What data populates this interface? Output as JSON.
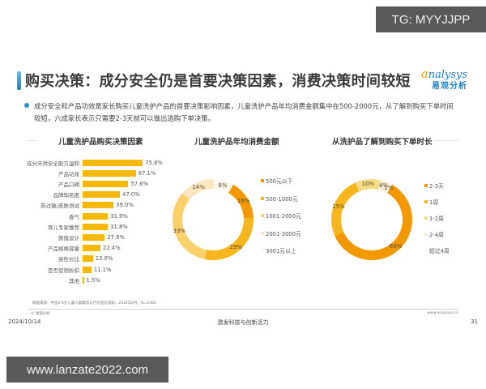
{
  "watermarks": {
    "top_right": "TG: MYYJJPP",
    "bottom_left": "www.lanzate2022.com"
  },
  "header": {
    "title": "购买决策：成分安全仍是首要决策因素，消费决策时间较短",
    "logo_en_first": "a",
    "logo_en_rest": "nalysys",
    "logo_cn": "易观分析"
  },
  "summary": {
    "text": "成分安全和产品功效是家长购买儿童洗护产品的首要决策影响因素，儿童洗护产品年均消费金额集中在500-2000元，从了解到购买下单时间较短，六成家长表示只需要2-3天就可以做出选购下单决策。"
  },
  "chart_data": [
    {
      "type": "bar",
      "orientation": "horizontal",
      "title": "儿童洗护品购买决策因素",
      "categories": [
        "成分天然安全配方温和",
        "产品功效",
        "产品口碑",
        "品牌知名度",
        "防过敏/皮肤测试",
        "香气",
        "育儿专家推荐",
        "颜值设计",
        "产品规格容量",
        "高性价比",
        "是否促销折扣",
        "其他"
      ],
      "values": [
        75.8,
        67.1,
        57.6,
        47.0,
        39.0,
        31.9,
        31.8,
        27.9,
        22.4,
        13.0,
        11.1,
        1.5
      ],
      "value_labels": [
        "75.8%",
        "67.1%",
        "57.6%",
        "47.0%",
        "39.0%",
        "31.9%",
        "31.8%",
        "27.9%",
        "22.4%",
        "13.0%",
        "11.1%",
        "1.5%"
      ],
      "unit": "%",
      "color": "#f5b800",
      "xlabel": "",
      "ylabel": "",
      "grid": false
    },
    {
      "type": "pie",
      "donut": true,
      "title": "儿童洗护品年均消费金额",
      "categories": [
        "500元以下",
        "500-1000元",
        "1001-2000元",
        "2001-3000元",
        "3001元以上"
      ],
      "values": [
        16,
        29,
        33,
        14,
        8
      ],
      "value_labels": [
        "16%",
        "29%",
        "33%",
        "14%",
        "8%"
      ],
      "colors": [
        "#f39800",
        "#f7b51e",
        "#fbd06a",
        "#fbe6c2",
        "#fdf6ea"
      ],
      "legend_position": "right",
      "start_angle_deg": 30
    },
    {
      "type": "pie",
      "donut": true,
      "title": "从洗护品了解到购买下单时长",
      "categories": [
        "2-3天",
        "1周",
        "1-2周",
        "2-4周",
        "超过4周"
      ],
      "values": [
        60,
        25,
        10,
        4,
        1
      ],
      "value_labels": [
        "60%",
        "25%",
        "10%",
        "4%",
        "1%"
      ],
      "colors": [
        "#f39800",
        "#f7b51e",
        "#f6dd85",
        "#f3ecd2",
        "#faf7ee"
      ],
      "legend_position": "right",
      "start_angle_deg": 30
    }
  ],
  "footer": {
    "source": "数据来源：中国3-6岁儿童人群需求与行为变化调研，2024年8月，N=2300",
    "copyright": "© 易观分析",
    "url": "www.analysys.cn",
    "date": "2024/10/14",
    "slogan": "激发科技与创新活力",
    "page": "31"
  }
}
